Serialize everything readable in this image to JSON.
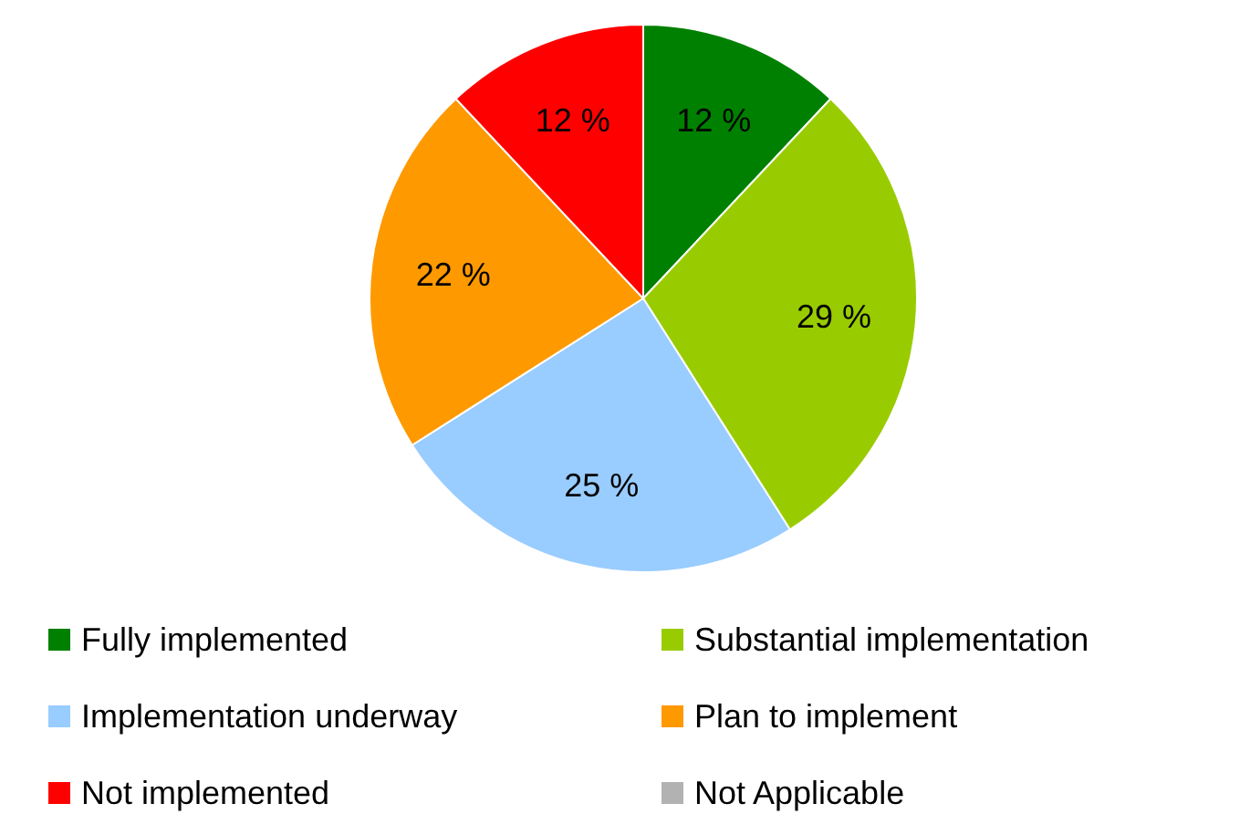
{
  "chart_data": {
    "type": "pie",
    "categories": [
      "Fully implemented",
      "Substantial implementation",
      "Implementation underway",
      "Plan to implement",
      "Not implemented",
      "Not Applicable"
    ],
    "values": [
      12,
      29,
      25,
      22,
      12,
      0
    ],
    "colors": [
      "#008000",
      "#99cc00",
      "#99ccff",
      "#ff9900",
      "#ff0000",
      "#b2b2b2"
    ],
    "value_labels": [
      "12 %",
      "29 %",
      "25 %",
      "22 %",
      "12 %",
      null
    ],
    "legend": "bottom"
  }
}
